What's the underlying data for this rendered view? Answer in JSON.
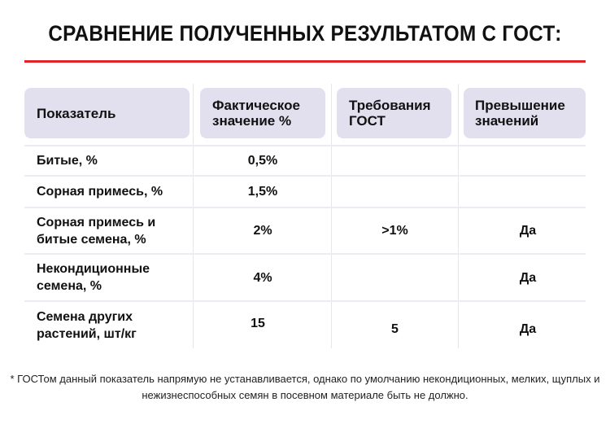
{
  "title": "СРАВНЕНИЕ ПОЛУЧЕННЫХ РЕЗУЛЬТАТОМ С ГОСТ:",
  "colors": {
    "accent": "#e3232a",
    "header_bg": "#e2dfee"
  },
  "headers": [
    "Показатель",
    "Фактическое значение %",
    "Требования ГОСТ",
    "Превышение значений"
  ],
  "rows": [
    {
      "name": "Битые, %",
      "actual": "0,5%",
      "gost": "",
      "exceed": ""
    },
    {
      "name": "Сорная примесь, %",
      "actual": "1,5%",
      "gost": "",
      "exceed": ""
    },
    {
      "name": "Сорная примесь и битые семена, %",
      "actual": "2%",
      "gost": ">1%",
      "exceed": "Да"
    },
    {
      "name": "Некондиционные семена, %",
      "actual": "4%",
      "gost": "",
      "exceed": "Да"
    },
    {
      "name": "Семена других растений, шт/кг",
      "actual": "15",
      "gost": "5",
      "exceed": "Да"
    }
  ],
  "footnote": "* ГОСТом данный показатель напрямую не устанавливается, однако по умолчанию некондиционных, мелких, щуплых и нежизнеспособных семян в посевном материале быть не должно."
}
